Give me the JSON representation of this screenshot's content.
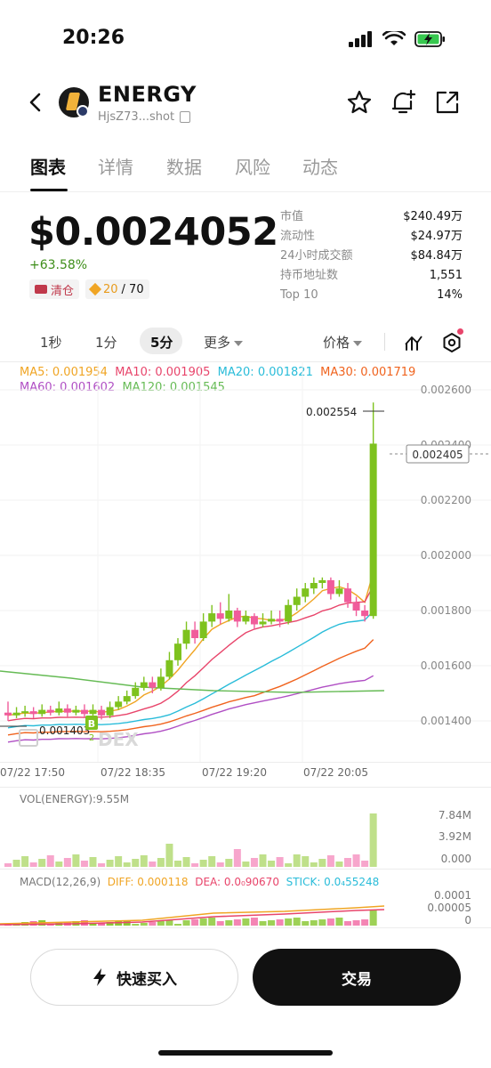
{
  "status": {
    "time": "20:26"
  },
  "token": {
    "name": "ENERGY",
    "address": "HjsZ73...shot"
  },
  "tabs": [
    {
      "label": "图表",
      "active": true
    },
    {
      "label": "详情"
    },
    {
      "label": "数据"
    },
    {
      "label": "风险"
    },
    {
      "label": "动态"
    }
  ],
  "price": {
    "value": "$0.0024052",
    "change": "+63.58%"
  },
  "chips": {
    "clear": "清仓",
    "holders_ratio_a": "20",
    "holders_ratio_b": "/ 70"
  },
  "stats": [
    {
      "key": "市值",
      "value": "$240.49万"
    },
    {
      "key": "流动性",
      "value": "$24.97万"
    },
    {
      "key": "24小时成交额",
      "value": "$84.84万"
    },
    {
      "key": "持币地址数",
      "value": "1,551"
    },
    {
      "key": "Top 10",
      "value": "14%"
    }
  ],
  "timeframes": {
    "t1": "1秒",
    "t2": "1分",
    "t3": "5分",
    "more": "更多",
    "price_type": "价格"
  },
  "ma": {
    "ma5": "MA5: 0.001954",
    "ma10": "MA10: 0.001905",
    "ma20": "MA20: 0.001821",
    "ma30": "MA30: 0.001719",
    "ma60": "MA60: 0.001602",
    "ma120": "MA120: 0.001545"
  },
  "colors": {
    "up": "#7ec21e",
    "down": "#f05c9b",
    "ma5": "#f0a524",
    "ma10": "#e8456b",
    "ma20": "#29bcd9",
    "ma30": "#f0631e",
    "ma60": "#b04fc4",
    "ma120": "#66bb55"
  },
  "main_chart": {
    "high_label": "0.002554",
    "low_label": "0.001403",
    "current_label": "0.002405",
    "marker": "B",
    "marker_sub": "2",
    "watermark": "DEX",
    "y_ticks": [
      "0.002600",
      "0.002400",
      "0.002200",
      "0.002000",
      "0.001800",
      "0.001600",
      "0.001400"
    ],
    "x_ticks": [
      "07/22 17:50",
      "07/22 18:35",
      "07/22 19:20",
      "07/22 20:05"
    ]
  },
  "chart_data": {
    "type": "candlestick",
    "y_axis": [
      0.0014,
      0.0026
    ],
    "candles": [
      [
        0.00143,
        0.00142,
        0.00147,
        0.0014
      ],
      [
        0.00142,
        0.00143,
        0.00145,
        0.00141
      ],
      [
        0.00143,
        0.001435,
        0.001455,
        0.001415
      ],
      [
        0.001435,
        0.001425,
        0.00145,
        0.00141
      ],
      [
        0.001425,
        0.00144,
        0.00146,
        0.001415
      ],
      [
        0.00144,
        0.00143,
        0.001455,
        0.00142
      ],
      [
        0.00143,
        0.001445,
        0.00147,
        0.00142
      ],
      [
        0.001445,
        0.00143,
        0.00146,
        0.001415
      ],
      [
        0.00143,
        0.00144,
        0.001455,
        0.00142
      ],
      [
        0.00144,
        0.001425,
        0.00146,
        0.00141
      ],
      [
        0.001425,
        0.00144,
        0.00146,
        0.001403
      ],
      [
        0.00144,
        0.00142,
        0.001455,
        0.001405
      ],
      [
        0.00142,
        0.00145,
        0.00147,
        0.00141
      ],
      [
        0.00145,
        0.00147,
        0.00149,
        0.00144
      ],
      [
        0.00147,
        0.00149,
        0.00151,
        0.00146
      ],
      [
        0.00149,
        0.00152,
        0.00154,
        0.00148
      ],
      [
        0.00152,
        0.00154,
        0.00156,
        0.00151
      ],
      [
        0.00154,
        0.00152,
        0.00156,
        0.0015
      ],
      [
        0.00152,
        0.00156,
        0.00159,
        0.00151
      ],
      [
        0.00156,
        0.00162,
        0.00165,
        0.00155
      ],
      [
        0.00162,
        0.00168,
        0.0017,
        0.0016
      ],
      [
        0.00168,
        0.00173,
        0.00176,
        0.00166
      ],
      [
        0.00173,
        0.0017,
        0.00176,
        0.00168
      ],
      [
        0.0017,
        0.00176,
        0.00179,
        0.00169
      ],
      [
        0.00176,
        0.00179,
        0.00182,
        0.00174
      ],
      [
        0.00179,
        0.00177,
        0.00183,
        0.00175
      ],
      [
        0.00177,
        0.0018,
        0.00186,
        0.00176
      ],
      [
        0.0018,
        0.00176,
        0.00181,
        0.00174
      ],
      [
        0.00176,
        0.00178,
        0.0018,
        0.00175
      ],
      [
        0.00178,
        0.00175,
        0.00179,
        0.00173
      ],
      [
        0.00175,
        0.00176,
        0.00179,
        0.00174
      ],
      [
        0.00176,
        0.00177,
        0.0018,
        0.00175
      ],
      [
        0.00177,
        0.00176,
        0.0018,
        0.00174
      ],
      [
        0.00176,
        0.00182,
        0.00184,
        0.00175
      ],
      [
        0.00182,
        0.00185,
        0.00188,
        0.0018
      ],
      [
        0.00185,
        0.00188,
        0.0019,
        0.00183
      ],
      [
        0.00188,
        0.0019,
        0.00192,
        0.00186
      ],
      [
        0.0019,
        0.00191,
        0.00192,
        0.00188
      ],
      [
        0.00191,
        0.00186,
        0.00192,
        0.00184
      ],
      [
        0.00186,
        0.00188,
        0.00191,
        0.00185
      ],
      [
        0.00188,
        0.00183,
        0.0019,
        0.00181
      ],
      [
        0.00183,
        0.0018,
        0.00185,
        0.00178
      ],
      [
        0.0018,
        0.00178,
        0.00182,
        0.00176
      ],
      [
        0.00178,
        0.002405,
        0.002554,
        0.00177
      ]
    ]
  },
  "volume": {
    "title": "VOL(ENERGY):9.55M",
    "y_ticks": [
      "7.84M",
      "3.92M",
      "0.000"
    ]
  },
  "macd": {
    "title": "MACD(12,26,9)",
    "diff": "DIFF: 0.000118",
    "dea": "DEA: 0.0₀90670",
    "stick": "STICK: 0.0₄55248",
    "y_ticks": [
      "0.0001",
      "0.00005",
      "0"
    ]
  },
  "buttons": {
    "quick_buy": "快速买入",
    "trade": "交易"
  }
}
